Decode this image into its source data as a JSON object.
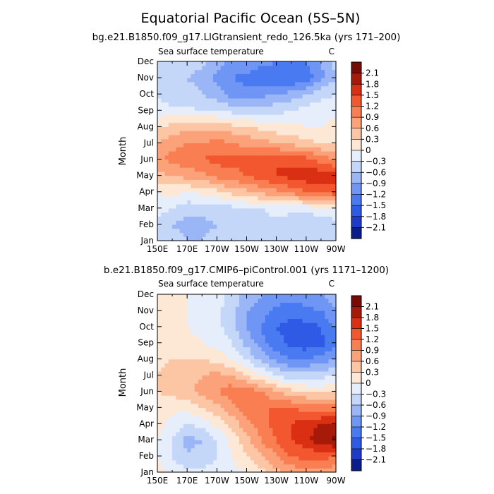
{
  "figure": {
    "title": "Equatorial Pacific Ocean (5S–5N)"
  },
  "chart_data": [
    {
      "type": "heatmap",
      "subtitle": "bg.e21.B1850.f09_g17.LIGtransient_redo_126.5ka (yrs 171–200)",
      "variable": "Sea surface temperature",
      "units": "C",
      "xlabel": "",
      "ylabel": "Month",
      "x": [
        "150E",
        "160E",
        "170E",
        "180",
        "170W",
        "160W",
        "150W",
        "140W",
        "130W",
        "120W",
        "110W",
        "100W",
        "90W"
      ],
      "x_tick_labels": [
        "150E",
        "170E",
        "170W",
        "150W",
        "130W",
        "110W",
        "90W"
      ],
      "y": [
        "Jan",
        "Feb",
        "Mar",
        "Apr",
        "May",
        "Jun",
        "Jul",
        "Aug",
        "Sep",
        "Oct",
        "Nov",
        "Dec"
      ],
      "z": [
        [
          -0.4,
          -0.5,
          -0.6,
          -0.6,
          -0.5,
          -0.4,
          -0.3,
          -0.3,
          -0.4,
          -0.5,
          -0.6,
          -0.6,
          -0.5
        ],
        [
          -0.4,
          -0.6,
          -0.7,
          -0.7,
          -0.6,
          -0.6,
          -0.5,
          -0.4,
          -0.4,
          -0.5,
          -0.6,
          -0.5,
          -0.4
        ],
        [
          -0.2,
          -0.3,
          -0.5,
          -0.5,
          -0.4,
          -0.4,
          -0.3,
          -0.3,
          -0.2,
          -0.2,
          -0.2,
          -0.1,
          -0.1
        ],
        [
          0.0,
          0.1,
          0.0,
          0.1,
          0.2,
          0.4,
          0.5,
          0.7,
          0.8,
          1.0,
          1.2,
          1.3,
          1.4
        ],
        [
          0.5,
          0.6,
          0.7,
          0.8,
          1.0,
          1.1,
          1.2,
          1.4,
          1.5,
          1.6,
          1.7,
          1.7,
          1.6
        ],
        [
          0.8,
          1.0,
          1.1,
          1.2,
          1.3,
          1.3,
          1.3,
          1.4,
          1.5,
          1.4,
          1.3,
          1.1,
          0.9
        ],
        [
          0.6,
          0.8,
          0.9,
          0.9,
          1.0,
          0.9,
          0.8,
          0.7,
          0.6,
          0.5,
          0.4,
          0.3,
          0.2
        ],
        [
          0.3,
          0.4,
          0.5,
          0.5,
          0.5,
          0.4,
          0.3,
          0.2,
          0.1,
          0.1,
          0.0,
          0.0,
          0.1
        ],
        [
          -0.2,
          -0.2,
          -0.2,
          -0.3,
          -0.3,
          -0.4,
          -0.4,
          -0.5,
          -0.4,
          -0.3,
          -0.2,
          -0.1,
          -0.1
        ],
        [
          -0.3,
          -0.5,
          -0.5,
          -0.6,
          -0.8,
          -1.0,
          -1.1,
          -1.0,
          -0.9,
          -0.8,
          -0.6,
          -0.4,
          -0.3
        ],
        [
          -0.4,
          -0.5,
          -0.6,
          -0.7,
          -1.0,
          -1.2,
          -1.3,
          -1.4,
          -1.4,
          -1.5,
          -1.4,
          -1.0,
          -0.6
        ],
        [
          -0.4,
          -0.5,
          -0.5,
          -0.5,
          -0.8,
          -1.0,
          -1.0,
          -1.1,
          -1.2,
          -1.2,
          -1.2,
          -0.9,
          -0.5
        ]
      ],
      "levels": [
        -2.1,
        -1.8,
        -1.5,
        -1.2,
        -0.9,
        -0.6,
        -0.3,
        0,
        0.3,
        0.6,
        0.9,
        1.2,
        1.5,
        1.8,
        2.1
      ],
      "level_labels": [
        "2.1",
        "1.8",
        "1.5",
        "1.2",
        "0.9",
        "0.6",
        "0.3",
        "0",
        "−0.3",
        "−0.6",
        "−0.9",
        "−1.2",
        "−1.5",
        "−1.8",
        "−2.1"
      ],
      "colorbar_colors": [
        "#0b1c8c",
        "#1e3cc8",
        "#2e5ae6",
        "#4a7af2",
        "#6f95f5",
        "#9bb6f7",
        "#c5d7f9",
        "#e6eefc",
        "#fde8d6",
        "#fcc6a5",
        "#fba27a",
        "#f97f53",
        "#f2572f",
        "#d92f12",
        "#a71a0a",
        "#7a0a04"
      ],
      "legend": "colorbar right"
    },
    {
      "type": "heatmap",
      "subtitle": "b.e21.B1850.f09_g17.CMIP6–piControl.001 (yrs 1171–1200)",
      "variable": "Sea surface temperature",
      "units": "C",
      "xlabel": "",
      "ylabel": "Month",
      "x": [
        "150E",
        "160E",
        "170E",
        "180",
        "170W",
        "160W",
        "150W",
        "140W",
        "130W",
        "120W",
        "110W",
        "100W",
        "90W"
      ],
      "x_tick_labels": [
        "150E",
        "170E",
        "170W",
        "150W",
        "130W",
        "110W",
        "90W"
      ],
      "y": [
        "Jan",
        "Feb",
        "Mar",
        "Apr",
        "May",
        "Jun",
        "Jul",
        "Aug",
        "Sep",
        "Oct",
        "Nov",
        "Dec"
      ],
      "z": [
        [
          0.1,
          -0.1,
          -0.2,
          -0.2,
          -0.2,
          -0.1,
          0.0,
          0.2,
          0.5,
          0.7,
          0.8,
          0.8,
          0.7
        ],
        [
          0.0,
          -0.3,
          -0.6,
          -0.5,
          -0.3,
          0.0,
          0.3,
          0.6,
          0.9,
          1.2,
          1.3,
          1.3,
          1.2
        ],
        [
          0.0,
          -0.3,
          -0.7,
          -0.6,
          -0.3,
          0.1,
          0.5,
          0.9,
          1.2,
          1.5,
          1.7,
          2.0,
          2.2
        ],
        [
          0.1,
          -0.1,
          -0.3,
          -0.2,
          0.1,
          0.4,
          0.8,
          1.1,
          1.3,
          1.5,
          1.7,
          1.8,
          1.8
        ],
        [
          0.2,
          0.1,
          0.1,
          0.3,
          0.5,
          0.8,
          1.1,
          1.2,
          1.2,
          1.2,
          1.1,
          1.0,
          1.0
        ],
        [
          0.3,
          0.4,
          0.5,
          0.7,
          0.9,
          1.1,
          1.1,
          0.9,
          0.6,
          0.4,
          0.3,
          0.2,
          0.3
        ],
        [
          0.3,
          0.4,
          0.5,
          0.6,
          0.7,
          0.6,
          0.3,
          0.0,
          -0.3,
          -0.5,
          -0.5,
          -0.4,
          -0.3
        ],
        [
          0.2,
          0.3,
          0.3,
          0.3,
          0.2,
          0.0,
          -0.3,
          -0.7,
          -1.0,
          -1.2,
          -1.2,
          -1.1,
          -0.9
        ],
        [
          0.1,
          0.1,
          0.1,
          0.0,
          -0.1,
          -0.3,
          -0.7,
          -1.1,
          -1.4,
          -1.6,
          -1.7,
          -1.6,
          -1.3
        ],
        [
          0.1,
          0.1,
          0.0,
          -0.1,
          -0.2,
          -0.5,
          -0.9,
          -1.2,
          -1.5,
          -1.6,
          -1.6,
          -1.5,
          -1.2
        ],
        [
          0.1,
          0.1,
          0.0,
          -0.1,
          -0.2,
          -0.5,
          -0.9,
          -1.1,
          -1.3,
          -1.4,
          -1.3,
          -1.2,
          -0.9
        ],
        [
          0.1,
          0.1,
          0.0,
          -0.1,
          -0.2,
          -0.4,
          -0.7,
          -0.9,
          -1.0,
          -1.0,
          -1.0,
          -0.9,
          -0.7
        ]
      ],
      "levels": [
        -2.1,
        -1.8,
        -1.5,
        -1.2,
        -0.9,
        -0.6,
        -0.3,
        0,
        0.3,
        0.6,
        0.9,
        1.2,
        1.5,
        1.8,
        2.1
      ],
      "level_labels": [
        "2.1",
        "1.8",
        "1.5",
        "1.2",
        "0.9",
        "0.6",
        "0.3",
        "0",
        "−0.3",
        "−0.6",
        "−0.9",
        "−1.2",
        "−1.5",
        "−1.8",
        "−2.1"
      ],
      "colorbar_colors": [
        "#0b1c8c",
        "#1e3cc8",
        "#2e5ae6",
        "#4a7af2",
        "#6f95f5",
        "#9bb6f7",
        "#c5d7f9",
        "#e6eefc",
        "#fde8d6",
        "#fcc6a5",
        "#fba27a",
        "#f97f53",
        "#f2572f",
        "#d92f12",
        "#a71a0a",
        "#7a0a04"
      ],
      "legend": "colorbar right"
    }
  ]
}
